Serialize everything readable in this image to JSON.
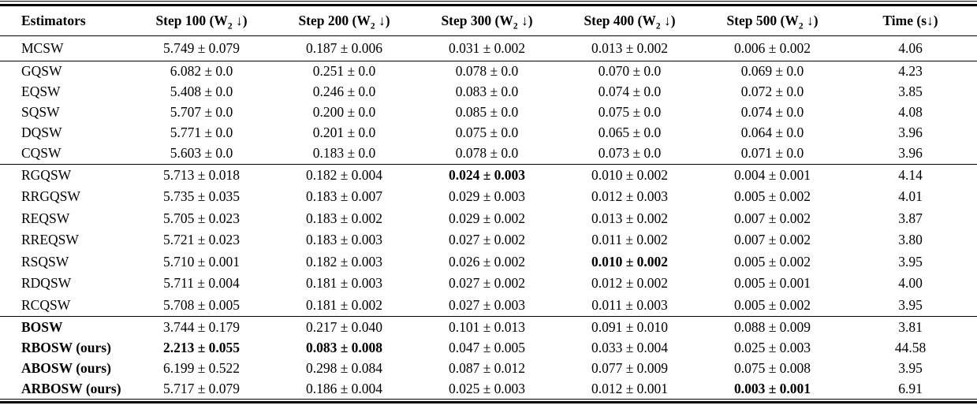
{
  "table": {
    "header": {
      "estimators": "Estimators",
      "steps": [
        {
          "pre": "Step 100 (W",
          "sub": "2",
          "post": " ↓)"
        },
        {
          "pre": "Step 200 (W",
          "sub": "2",
          "post": " ↓)"
        },
        {
          "pre": "Step 300 (W",
          "sub": "2",
          "post": " ↓)"
        },
        {
          "pre": "Step 400 (W",
          "sub": "2",
          "post": " ↓)"
        },
        {
          "pre": "Step 500 (W",
          "sub": "2",
          "post": " ↓)"
        }
      ],
      "time": "Time (s↓)"
    },
    "groups": [
      {
        "rows": [
          {
            "name": "MCSW",
            "name_bold": false,
            "cells": [
              "5.749 ± 0.079",
              "0.187 ± 0.006",
              "0.031 ± 0.002",
              "0.013 ± 0.002",
              "0.006 ± 0.002"
            ],
            "bold": [
              false,
              false,
              false,
              false,
              false
            ],
            "time": "4.06"
          }
        ]
      },
      {
        "rows": [
          {
            "name": "GQSW",
            "name_bold": false,
            "cells": [
              "6.082 ± 0.0",
              "0.251 ± 0.0",
              "0.078 ± 0.0",
              "0.070 ± 0.0",
              "0.069 ± 0.0"
            ],
            "bold": [
              false,
              false,
              false,
              false,
              false
            ],
            "time": "4.23"
          },
          {
            "name": "EQSW",
            "name_bold": false,
            "cells": [
              "5.408 ± 0.0",
              "0.246 ± 0.0",
              "0.083 ± 0.0",
              "0.074 ± 0.0",
              "0.072 ± 0.0"
            ],
            "bold": [
              false,
              false,
              false,
              false,
              false
            ],
            "time": "3.85"
          },
          {
            "name": "SQSW",
            "name_bold": false,
            "cells": [
              "5.707 ± 0.0",
              "0.200 ± 0.0",
              "0.085 ± 0.0",
              "0.075 ± 0.0",
              "0.074 ± 0.0"
            ],
            "bold": [
              false,
              false,
              false,
              false,
              false
            ],
            "time": "4.08"
          },
          {
            "name": "DQSW",
            "name_bold": false,
            "cells": [
              "5.771 ± 0.0",
              "0.201 ± 0.0",
              "0.075 ± 0.0",
              "0.065 ± 0.0",
              "0.064 ± 0.0"
            ],
            "bold": [
              false,
              false,
              false,
              false,
              false
            ],
            "time": "3.96"
          },
          {
            "name": "CQSW",
            "name_bold": false,
            "cells": [
              "5.603 ± 0.0",
              "0.183 ± 0.0",
              "0.078 ± 0.0",
              "0.073 ± 0.0",
              "0.071 ± 0.0"
            ],
            "bold": [
              false,
              false,
              false,
              false,
              false
            ],
            "time": "3.96"
          }
        ]
      },
      {
        "rows": [
          {
            "name": "RGQSW",
            "name_bold": false,
            "cells": [
              "5.713 ± 0.018",
              "0.182 ± 0.004",
              "0.024 ± 0.003",
              "0.010 ± 0.002",
              "0.004 ± 0.001"
            ],
            "bold": [
              false,
              false,
              true,
              false,
              false
            ],
            "time": "4.14"
          },
          {
            "name": "RRGQSW",
            "name_bold": false,
            "cells": [
              "5.735 ± 0.035",
              "0.183 ± 0.007",
              "0.029 ± 0.003",
              "0.012 ± 0.003",
              "0.005 ± 0.002"
            ],
            "bold": [
              false,
              false,
              false,
              false,
              false
            ],
            "time": "4.01"
          },
          {
            "name": "REQSW",
            "name_bold": false,
            "cells": [
              "5.705 ± 0.023",
              "0.183 ± 0.002",
              "0.029 ± 0.002",
              "0.013 ± 0.002",
              "0.007 ± 0.002"
            ],
            "bold": [
              false,
              false,
              false,
              false,
              false
            ],
            "time": "3.87"
          },
          {
            "name": "RREQSW",
            "name_bold": false,
            "cells": [
              "5.721 ± 0.023",
              "0.183 ± 0.003",
              "0.027 ± 0.002",
              "0.011 ± 0.002",
              "0.007 ± 0.002"
            ],
            "bold": [
              false,
              false,
              false,
              false,
              false
            ],
            "time": "3.80"
          },
          {
            "name": "RSQSW",
            "name_bold": false,
            "cells": [
              "5.710 ± 0.001",
              "0.182 ± 0.003",
              "0.026 ± 0.002",
              "0.010 ± 0.002",
              "0.005 ± 0.002"
            ],
            "bold": [
              false,
              false,
              false,
              true,
              false
            ],
            "time": "3.95"
          },
          {
            "name": "RDQSW",
            "name_bold": false,
            "cells": [
              "5.711 ± 0.004",
              "0.181 ± 0.003",
              "0.027 ± 0.002",
              "0.012 ± 0.002",
              "0.005 ± 0.001"
            ],
            "bold": [
              false,
              false,
              false,
              false,
              false
            ],
            "time": "4.00"
          },
          {
            "name": "RCQSW",
            "name_bold": false,
            "cells": [
              "5.708 ± 0.005",
              "0.181 ± 0.002",
              "0.027 ± 0.003",
              "0.011 ± 0.003",
              "0.005 ± 0.002"
            ],
            "bold": [
              false,
              false,
              false,
              false,
              false
            ],
            "time": "3.95"
          }
        ]
      },
      {
        "rows": [
          {
            "name": "BOSW",
            "name_bold": true,
            "cells": [
              "3.744 ± 0.179",
              "0.217 ± 0.040",
              "0.101 ± 0.013",
              "0.091 ± 0.010",
              "0.088 ± 0.009"
            ],
            "bold": [
              false,
              false,
              false,
              false,
              false
            ],
            "time": "3.81"
          },
          {
            "name": "RBOSW (ours)",
            "name_bold": true,
            "cells": [
              "2.213 ± 0.055",
              "0.083 ± 0.008",
              "0.047 ± 0.005",
              "0.033 ± 0.004",
              "0.025 ± 0.003"
            ],
            "bold": [
              true,
              true,
              false,
              false,
              false
            ],
            "time": "44.58"
          },
          {
            "name": "ABOSW (ours)",
            "name_bold": true,
            "cells": [
              "6.199 ± 0.522",
              "0.298 ± 0.084",
              "0.087 ± 0.012",
              "0.077 ± 0.009",
              "0.075 ± 0.008"
            ],
            "bold": [
              false,
              false,
              false,
              false,
              false
            ],
            "time": "3.95"
          },
          {
            "name": "ARBOSW (ours)",
            "name_bold": true,
            "cells": [
              "5.717 ± 0.079",
              "0.186 ± 0.004",
              "0.025 ± 0.003",
              "0.012 ± 0.001",
              "0.003 ± 0.001"
            ],
            "bold": [
              false,
              false,
              false,
              false,
              true
            ],
            "time": "6.91"
          }
        ]
      }
    ]
  }
}
